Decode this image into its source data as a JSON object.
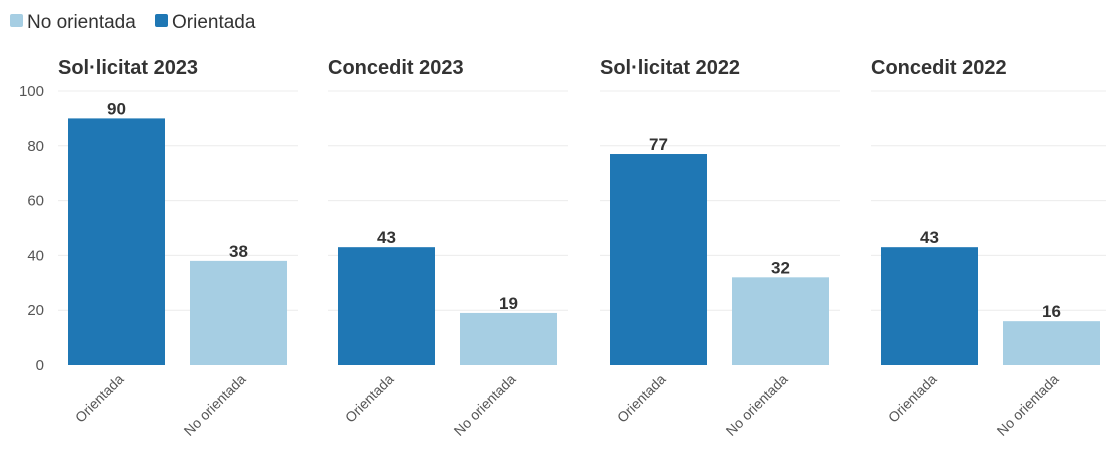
{
  "colors": {
    "orientada": "#1f77b4",
    "no_orientada": "#a6cee3"
  },
  "legend": [
    {
      "label": "No orientada",
      "series_key": "no_orientada"
    },
    {
      "label": "Orientada",
      "series_key": "orientada"
    }
  ],
  "chart_data": {
    "type": "bar",
    "ylim": [
      0,
      100
    ],
    "yticks": [
      0,
      20,
      40,
      60,
      80,
      100
    ],
    "grid": true,
    "legend_position": "top-left",
    "panels": [
      {
        "title": "Sol·licitat 2023",
        "categories": [
          "Orientada",
          "No orientada"
        ],
        "values": [
          90,
          38
        ]
      },
      {
        "title": "Concedit 2023",
        "categories": [
          "Orientada",
          "No orientada"
        ],
        "values": [
          43,
          19
        ]
      },
      {
        "title": "Sol·licitat 2022",
        "categories": [
          "Orientada",
          "No orientada"
        ],
        "values": [
          77,
          32
        ]
      },
      {
        "title": "Concedit 2022",
        "categories": [
          "Orientada",
          "No orientada"
        ],
        "values": [
          43,
          16
        ]
      }
    ]
  }
}
